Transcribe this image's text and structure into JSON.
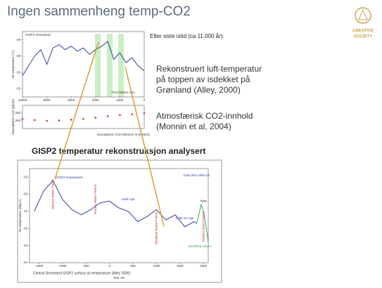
{
  "slide": {
    "title": "Ingen sammenheng temp-CO2",
    "logo": [
      "CREATIVE",
      "SOCIETY"
    ],
    "note": "Etter siste istid (ca 11.000 år):",
    "block1": [
      "Rekonstruert luft-temperatur",
      "på toppen av isdekket på",
      "Grønland (Alley, 2000)"
    ],
    "block2": [
      "Atmosfærisk CO2-innhold",
      "(Monnin et al, 2004)"
    ],
    "heading": "GISP2 temperatur rekonstruksjon analysert"
  },
  "chart_data": [
    {
      "type": "line",
      "title": "GISP2 Greenland",
      "xlabel": "Time before now",
      "ylabel": "Air temperature (°C)",
      "xlim": [
        10000,
        0
      ],
      "xticks": [
        10000,
        8000,
        6000,
        4000,
        2000,
        0
      ],
      "ylim": [
        -32.5,
        -28.5
      ],
      "yticks": [
        -29,
        -30,
        -31,
        -32
      ],
      "series": [
        {
          "color": "#2f3fa8",
          "x": [
            10000,
            9500,
            9000,
            8500,
            8000,
            7500,
            7000,
            6500,
            6000,
            5500,
            5000,
            4500,
            4000,
            3500,
            3000,
            2500,
            2000,
            1500,
            1000,
            500,
            0
          ],
          "values": [
            -31.2,
            -30.6,
            -30.0,
            -29.6,
            -30.5,
            -29.5,
            -29.3,
            -29.6,
            -29.4,
            -29.7,
            -29.5,
            -29.9,
            -29.6,
            -29.4,
            -29.1,
            -30.2,
            -29.8,
            -30.4,
            -30.1,
            -30.6,
            -30.9
          ]
        }
      ]
    },
    {
      "type": "scatter",
      "ylabel": "Atmospheric CO2 (ppmv)",
      "xlabel": "Atmospheric CO2 (Monnin et al 2004)",
      "xlim": [
        10000,
        0
      ],
      "ylim": [
        240,
        300
      ],
      "yticks": [
        260,
        280
      ],
      "series": [
        {
          "color": "#c0392b",
          "x": [
            10000,
            9000,
            8000,
            7000,
            6000,
            5000,
            4000,
            3000,
            2000,
            1000,
            0
          ],
          "values": [
            265,
            262,
            260,
            261,
            263,
            265,
            268,
            272,
            275,
            277,
            280
          ]
        }
      ]
    },
    {
      "type": "line",
      "title": "Central Greenland GISP2 surface air temperature (Alley 2000)",
      "xlabel": "Year AD",
      "ylabel": "Air temperature (deg C)",
      "xlim": [
        -1700,
        2100
      ],
      "xticks": [
        -1500,
        -1000,
        -500,
        0,
        500,
        1000,
        1500,
        2000
      ],
      "ylim": [
        -34,
        -28.5
      ],
      "yticks": [
        -29,
        -30,
        -31,
        -32,
        -33,
        -34
      ],
      "series": [
        {
          "name": "GISP2 temperature",
          "color": "#2f3fa8",
          "x": [
            -1600,
            -1400,
            -1200,
            -1000,
            -800,
            -600,
            -400,
            -200,
            0,
            200,
            400,
            600,
            800,
            1000,
            1200,
            1400,
            1600,
            1800,
            1855
          ],
          "values": [
            -31.0,
            -29.8,
            -29.2,
            -30.3,
            -30.9,
            -31.2,
            -30.9,
            -30.5,
            -30.4,
            -30.8,
            -31.0,
            -31.6,
            -31.3,
            -30.9,
            -31.5,
            -31.2,
            -31.9,
            -31.6,
            -31.7
          ]
        },
        {
          "name": "Modelled values",
          "color": "#3aa85a",
          "x": [
            1855,
            1900,
            1950,
            2000,
            2050,
            2100
          ],
          "values": [
            -31.7,
            -31.2,
            -30.6,
            -31.0,
            -31.8,
            -32.8
          ]
        }
      ],
      "annotations": [
        "Data limit 1855 AD",
        "Now",
        "Dark Age",
        "Little Ice Age",
        "Minoan Warm Period",
        "Roman Warm Period",
        "Medieval Warm Period",
        "Modern Warm Period"
      ]
    }
  ]
}
